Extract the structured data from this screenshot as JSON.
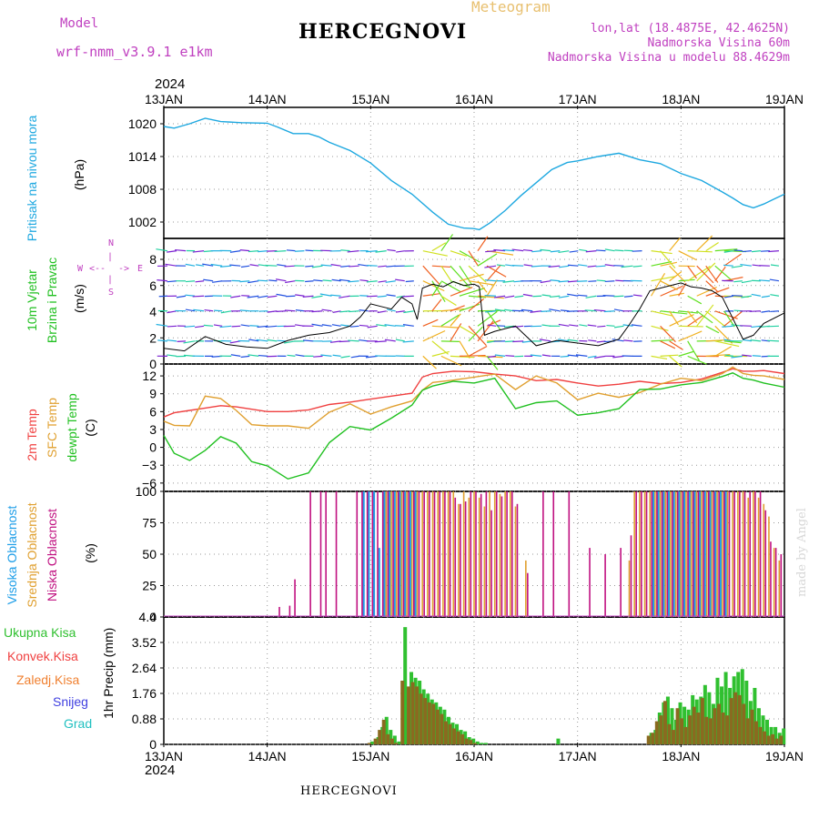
{
  "header": {
    "model_label": "Model",
    "model_name": "wrf-nmm_v3.9.1 e1km",
    "station": "HERCEGNOVI",
    "meteogram": "Meteogram",
    "lonlat": "lon,lat (18.4875E, 42.4625N)",
    "elev": "Nadmorska Visina 60m",
    "model_elev": "Nadmorska Visina u modelu 88.4629m",
    "year_top": "2024",
    "year_bottom": "2024",
    "footer_station": "HERCEGNOVI",
    "watermark": "made by Angel"
  },
  "colors": {
    "pressure": "#1ea8e0",
    "t2m": "#f04040",
    "tsfc": "#e0a030",
    "dewpt": "#20c020",
    "total_precip": "#30c030",
    "conv_precip": "#f04040",
    "frz_precip": "#f08030",
    "snow": "#4040e0",
    "graupel": "#20c0c0",
    "high_cloud": "#1e9ee8",
    "mid_cloud": "#e0a030",
    "low_cloud": "#c01080",
    "wind_axis": "#c040c0"
  },
  "chart_data": [
    {
      "type": "line",
      "panel": "pressure",
      "ylabel_1": "Pritisak na nivou mora",
      "ylabel_2": "(hPa)",
      "yticks": [
        1002,
        1008,
        1014,
        1020
      ],
      "ylim": [
        999,
        1023
      ],
      "x": [
        0,
        0.1,
        0.25,
        0.4,
        0.55,
        0.75,
        1.0,
        1.1,
        1.25,
        1.4,
        1.5,
        1.6,
        1.8,
        2.0,
        2.2,
        2.4,
        2.6,
        2.75,
        2.9,
        3.0,
        3.05,
        3.15,
        3.3,
        3.45,
        3.6,
        3.75,
        3.9,
        4.0,
        4.2,
        4.4,
        4.6,
        4.8,
        5.0,
        5.2,
        5.4,
        5.5,
        5.6,
        5.7,
        5.8,
        5.9,
        6.0
      ],
      "y": [
        1019.5,
        1019.2,
        1020,
        1021,
        1020.4,
        1020.2,
        1020.1,
        1019.4,
        1018.2,
        1018.2,
        1017.6,
        1016.6,
        1015.1,
        1012.8,
        1009.6,
        1007.1,
        1003.8,
        1001.6,
        1000.9,
        1000.8,
        1000.6,
        1001.8,
        1004.1,
        1006.8,
        1009.2,
        1011.6,
        1012.9,
        1013.2,
        1014,
        1014.6,
        1013.4,
        1012.7,
        1010.9,
        1009.6,
        1007.5,
        1006.4,
        1005.2,
        1004.6,
        1005.3,
        1006.2,
        1007.1
      ],
      "series": [
        {
          "name": "Pritisak na nivou mora"
        }
      ]
    },
    {
      "type": "line",
      "panel": "wind",
      "ylabel_1": "10m Vjetar",
      "ylabel_2": "Brzina i Pravac",
      "ylabel_3": "(m/s)",
      "compass": {
        "n": "N",
        "s": "S",
        "w": "W",
        "e": "E",
        "arrow_left": "<--",
        "arrow_right": "->",
        "pipe": "|"
      },
      "yticks": [
        0,
        2,
        4,
        6,
        8
      ],
      "ylim": [
        0,
        9.6
      ],
      "x": [
        0,
        0.2,
        0.4,
        0.6,
        0.8,
        1.0,
        1.2,
        1.4,
        1.6,
        1.8,
        1.9,
        2.0,
        2.1,
        2.2,
        2.3,
        2.4,
        2.45,
        2.5,
        2.6,
        2.7,
        2.8,
        2.9,
        3.0,
        3.05,
        3.1,
        3.2,
        3.4,
        3.6,
        3.8,
        4.0,
        4.2,
        4.4,
        4.5,
        4.6,
        4.7,
        4.8,
        5.0,
        5.1,
        5.2,
        5.3,
        5.4,
        5.5,
        5.6,
        5.7,
        5.8,
        6.0
      ],
      "y": [
        1.2,
        1.0,
        2.1,
        1.5,
        1.3,
        1.2,
        1.8,
        2.2,
        2.4,
        2.9,
        3.6,
        4.6,
        4.4,
        4.2,
        5.1,
        4.6,
        3.4,
        5.8,
        6.1,
        5.9,
        6.3,
        6.0,
        6.1,
        5.9,
        2.2,
        2.5,
        2.9,
        1.4,
        1.8,
        1.6,
        1.4,
        1.9,
        3.0,
        4.2,
        5.6,
        5.8,
        6.2,
        5.9,
        5.8,
        5.6,
        5.1,
        3.5,
        1.9,
        2.2,
        3.1,
        3.9
      ],
      "series": [
        {
          "name": "10m Vjetar"
        }
      ]
    },
    {
      "type": "line",
      "panel": "temperature",
      "ylabel_1": "2m Temp",
      "ylabel_2": "SFC Temp",
      "ylabel_3": "dewpt Temp",
      "ylabel_4": "(C)",
      "yticks": [
        -6,
        -3,
        0,
        3,
        6,
        9,
        12
      ],
      "ylim": [
        -7.4,
        14
      ],
      "x": [
        0,
        0.1,
        0.25,
        0.4,
        0.55,
        0.7,
        0.85,
        1.0,
        1.2,
        1.4,
        1.6,
        1.8,
        2.0,
        2.2,
        2.4,
        2.5,
        2.6,
        2.8,
        3.0,
        3.2,
        3.4,
        3.6,
        3.8,
        4.0,
        4.2,
        4.4,
        4.6,
        4.8,
        5.0,
        5.2,
        5.4,
        5.5,
        5.6,
        5.7,
        5.8,
        6.0
      ],
      "series": [
        {
          "name": "2m Temp",
          "values": [
            5.1,
            5.8,
            6.2,
            6.6,
            7.0,
            6.8,
            6.4,
            6.0,
            6.0,
            6.3,
            7.2,
            7.6,
            8.1,
            8.6,
            9.1,
            11.8,
            12.4,
            12.8,
            12.7,
            12.3,
            12.0,
            11.2,
            11.4,
            10.8,
            10.3,
            10.6,
            11.1,
            10.7,
            10.9,
            11.5,
            12.6,
            13.2,
            12.8,
            12.8,
            12.9,
            12.4
          ]
        },
        {
          "name": "SFC Temp",
          "values": [
            4.4,
            3.7,
            3.6,
            8.6,
            8.2,
            6.2,
            3.8,
            3.6,
            3.6,
            3.2,
            5.9,
            7.3,
            5.6,
            6.8,
            7.8,
            9.6,
            10.9,
            11.3,
            11.8,
            12.3,
            9.7,
            12.0,
            10.8,
            8.0,
            9.1,
            8.4,
            9.2,
            10.6,
            11.6,
            11.2,
            12.4,
            13.5,
            12.4,
            12.1,
            12.0,
            11.4
          ]
        },
        {
          "name": "dewpt Temp",
          "values": [
            2.0,
            -1.0,
            -2.2,
            -0.5,
            1.8,
            0.7,
            -2.4,
            -3.1,
            -5.3,
            -4.3,
            0.8,
            3.5,
            2.9,
            4.9,
            7.1,
            9.6,
            10.3,
            11.1,
            10.8,
            11.6,
            6.5,
            7.5,
            7.8,
            5.4,
            5.8,
            6.5,
            9.7,
            9.8,
            10.5,
            10.9,
            11.9,
            12.5,
            11.6,
            11.3,
            10.8,
            10.1
          ]
        }
      ]
    },
    {
      "type": "bar",
      "panel": "cloud",
      "ylabel_1": "Visoka Oblacnost",
      "ylabel_2": "Srednja Oblacnost",
      "ylabel_3": "Niska Oblacnost",
      "ylabel_4": "(%)",
      "yticks": [
        0,
        25,
        50,
        75,
        100
      ],
      "ylim": [
        0,
        100
      ],
      "x": [
        1.1,
        1.2,
        1.25,
        1.4,
        1.5,
        1.55,
        1.65,
        1.85,
        1.9,
        1.95,
        2.0,
        2.05,
        2.1,
        2.15,
        2.2,
        2.25,
        2.3,
        2.35,
        2.4,
        2.45,
        2.5,
        2.55,
        2.6,
        2.65,
        2.7,
        2.75,
        2.8,
        2.85,
        2.9,
        2.95,
        3.0,
        3.05,
        3.1,
        3.15,
        3.2,
        3.25,
        3.3,
        3.35,
        3.4,
        3.5,
        3.65,
        3.75,
        3.9,
        4.1,
        4.25,
        4.4,
        4.5,
        4.55,
        4.6,
        4.65,
        4.7,
        4.75,
        4.8,
        4.85,
        4.9,
        4.95,
        5.0,
        5.05,
        5.1,
        5.15,
        5.2,
        5.25,
        5.3,
        5.35,
        5.4,
        5.45,
        5.5,
        5.55,
        5.6,
        5.65,
        5.7,
        5.75,
        5.8,
        5.85,
        5.9,
        5.95
      ],
      "series": [
        {
          "name": "Visoka Oblacnost",
          "values": [
            0,
            0,
            0,
            0,
            0,
            0,
            0,
            0,
            0,
            100,
            100,
            100,
            55,
            100,
            100,
            100,
            100,
            100,
            100,
            100,
            0,
            0,
            0,
            0,
            0,
            0,
            0,
            0,
            0,
            0,
            0,
            0,
            0,
            0,
            0,
            0,
            0,
            0,
            0,
            0,
            0,
            0,
            0,
            0,
            0,
            0,
            0,
            0,
            0,
            0,
            0,
            100,
            100,
            100,
            100,
            100,
            100,
            100,
            100,
            100,
            100,
            100,
            100,
            100,
            100,
            100,
            0,
            0,
            0,
            0,
            0,
            0,
            0,
            0,
            0,
            0
          ]
        },
        {
          "name": "Srednja Oblacnost",
          "values": [
            0,
            0,
            0,
            0,
            0,
            0,
            0,
            0,
            0,
            0,
            0,
            0,
            0,
            100,
            100,
            100,
            100,
            100,
            100,
            100,
            100,
            100,
            100,
            100,
            100,
            100,
            100,
            90,
            100,
            95,
            100,
            95,
            88,
            100,
            100,
            98,
            100,
            100,
            88,
            45,
            0,
            0,
            0,
            0,
            0,
            0,
            45,
            100,
            100,
            100,
            100,
            100,
            100,
            100,
            100,
            100,
            100,
            100,
            100,
            100,
            100,
            100,
            100,
            100,
            100,
            100,
            100,
            100,
            100,
            95,
            100,
            95,
            90,
            80,
            55,
            45
          ]
        },
        {
          "name": "Niska Oblacnost",
          "values": [
            8,
            9,
            30,
            100,
            100,
            100,
            100,
            100,
            100,
            100,
            100,
            100,
            100,
            100,
            100,
            100,
            100,
            100,
            100,
            100,
            100,
            100,
            100,
            100,
            100,
            100,
            95,
            90,
            92,
            100,
            100,
            98,
            100,
            85,
            100,
            96,
            100,
            100,
            90,
            35,
            100,
            100,
            100,
            55,
            50,
            55,
            65,
            100,
            100,
            100,
            100,
            100,
            100,
            100,
            100,
            100,
            100,
            100,
            100,
            100,
            100,
            100,
            100,
            100,
            100,
            100,
            100,
            100,
            100,
            100,
            100,
            100,
            85,
            60,
            55,
            50
          ]
        }
      ]
    },
    {
      "type": "bar",
      "panel": "precip",
      "ylabel_1": "1hr Precip",
      "ylabel_2": "(mm)",
      "legend": [
        "Ukupna Kisa",
        "Konvek.Kisa",
        "Zaledj.Kisa",
        "Snijeg",
        "Grad"
      ],
      "yticks": [
        0,
        0.88,
        1.76,
        2.64,
        3.52,
        4.4
      ],
      "ylim": [
        0,
        4.4
      ],
      "x": [
        2.0,
        2.06,
        2.1,
        2.14,
        2.18,
        2.22,
        2.26,
        2.32,
        2.38,
        2.42,
        2.46,
        2.5,
        2.54,
        2.58,
        2.62,
        2.66,
        2.7,
        2.74,
        2.78,
        2.82,
        2.86,
        2.9,
        2.94,
        2.98,
        3.02,
        3.06,
        3.1,
        3.14,
        3.18,
        3.22,
        3.8,
        4.7,
        4.74,
        4.78,
        4.82,
        4.86,
        4.9,
        4.94,
        4.98,
        5.02,
        5.06,
        5.1,
        5.14,
        5.18,
        5.22,
        5.26,
        5.3,
        5.34,
        5.38,
        5.42,
        5.46,
        5.5,
        5.54,
        5.58,
        5.62,
        5.66,
        5.7,
        5.74,
        5.78,
        5.82,
        5.86,
        5.9,
        5.94,
        5.98
      ],
      "series": [
        {
          "name": "Ukupna Kisa",
          "values": [
            0.1,
            0.25,
            0.6,
            0.95,
            0.5,
            0.3,
            0.1,
            4.05,
            2.5,
            2.3,
            2.2,
            1.9,
            1.75,
            1.55,
            1.45,
            1.3,
            1.2,
            0.95,
            0.75,
            0.7,
            0.5,
            0.45,
            0.25,
            0.2,
            0.1,
            0.05,
            0.05,
            0.0,
            0.0,
            0.0,
            0.2,
            0.4,
            0.5,
            1.1,
            1.45,
            1.65,
            1.25,
            0.85,
            1.45,
            1.3,
            1.2,
            1.7,
            1.55,
            1.65,
            2.05,
            1.8,
            1.4,
            2.3,
            2.0,
            2.5,
            1.95,
            2.35,
            2.5,
            2.6,
            2.2,
            1.5,
            1.95,
            1.25,
            1.0,
            0.85,
            0.6,
            0.6,
            0.4,
            0.55
          ]
        },
        {
          "name": "Konvek.Kisa",
          "values": [
            0.05,
            0.2,
            0.5,
            0.85,
            0.35,
            0.2,
            0.05,
            2.2,
            2.0,
            2.15,
            2.0,
            1.75,
            1.6,
            1.45,
            1.4,
            1.2,
            1.05,
            0.8,
            0.7,
            0.55,
            0.45,
            0.35,
            0.2,
            0.15,
            0.05,
            0.0,
            0.0,
            0.0,
            0.0,
            0.0,
            0.0,
            0.3,
            0.4,
            0.8,
            1.0,
            1.5,
            0.7,
            0.5,
            1.25,
            0.9,
            0.6,
            1.0,
            1.3,
            1.1,
            1.6,
            0.95,
            0.9,
            1.25,
            1.4,
            1.1,
            1.0,
            1.6,
            1.8,
            1.7,
            1.4,
            0.9,
            1.2,
            0.8,
            0.6,
            0.45,
            0.3,
            0.35,
            0.2,
            0.3
          ]
        }
      ]
    }
  ],
  "x_axis": {
    "labels": [
      "13JAN",
      "14JAN",
      "15JAN",
      "16JAN",
      "17JAN",
      "18JAN",
      "19JAN"
    ],
    "days": [
      0,
      1,
      2,
      3,
      4,
      5,
      6
    ]
  }
}
